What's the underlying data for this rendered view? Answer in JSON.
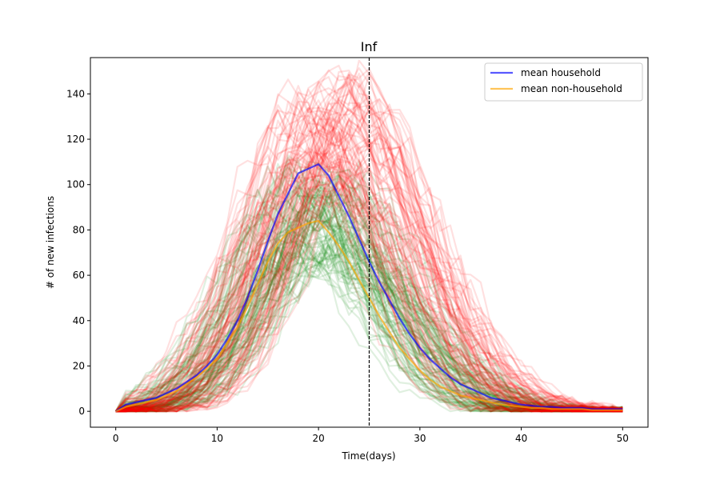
{
  "chart_data": {
    "type": "line",
    "title": "Inf",
    "xlabel": "Time(days)",
    "ylabel": "# of new infections",
    "xlim": [
      -2.5,
      52.5
    ],
    "ylim": [
      -7,
      156
    ],
    "xticks": [
      0,
      10,
      20,
      30,
      40,
      50
    ],
    "yticks": [
      0,
      20,
      40,
      60,
      80,
      100,
      120,
      140
    ],
    "vline": {
      "x": 25,
      "style": "dashed",
      "color": "#000000"
    },
    "grid": false,
    "legend_position": "upper right",
    "colors": {
      "household_runs": "#ff0000",
      "non_household_runs": "#008000",
      "mean_household": "#0000ff",
      "mean_non_household": "#ffa500"
    },
    "x": [
      0,
      1,
      2,
      3,
      4,
      5,
      6,
      7,
      8,
      9,
      10,
      11,
      12,
      13,
      14,
      15,
      16,
      17,
      18,
      19,
      20,
      21,
      22,
      23,
      24,
      25,
      26,
      27,
      28,
      29,
      30,
      31,
      32,
      33,
      34,
      35,
      36,
      37,
      38,
      39,
      40,
      41,
      42,
      43,
      44,
      45,
      46,
      47,
      48,
      49,
      50
    ],
    "series": [
      {
        "name": "mean household",
        "values": [
          0,
          3,
          4,
          5,
          6,
          8,
          10,
          13,
          16,
          20,
          25,
          32,
          40,
          50,
          62,
          75,
          87,
          96,
          105,
          107,
          109,
          104,
          95,
          86,
          76,
          66,
          57,
          49,
          41,
          34,
          28,
          23,
          19,
          15,
          12,
          10,
          8,
          6,
          5,
          4,
          3,
          2.5,
          2,
          2,
          1.5,
          1.5,
          1.5,
          1,
          1,
          1,
          1
        ]
      },
      {
        "name": "mean non-household",
        "values": [
          0,
          2,
          3,
          4,
          5,
          7,
          9,
          12,
          15,
          19,
          23,
          30,
          37,
          46,
          56,
          66,
          74,
          79,
          81,
          83,
          84,
          79,
          73,
          66,
          58,
          50,
          42,
          35,
          28,
          23,
          18,
          14,
          11,
          9,
          7,
          6,
          5,
          4,
          3,
          2.5,
          2,
          1.5,
          1.5,
          1,
          1,
          1,
          1,
          0.5,
          0.5,
          0.5,
          0.5
        ]
      }
    ],
    "run_bands": {
      "household": {
        "count": 90,
        "peak_day_range": [
          17,
          25
        ],
        "peak_value_range": [
          95,
          148
        ]
      },
      "non_household": {
        "count": 90,
        "peak_day_range": [
          16,
          23
        ],
        "peak_value_range": [
          65,
          105
        ]
      }
    }
  }
}
